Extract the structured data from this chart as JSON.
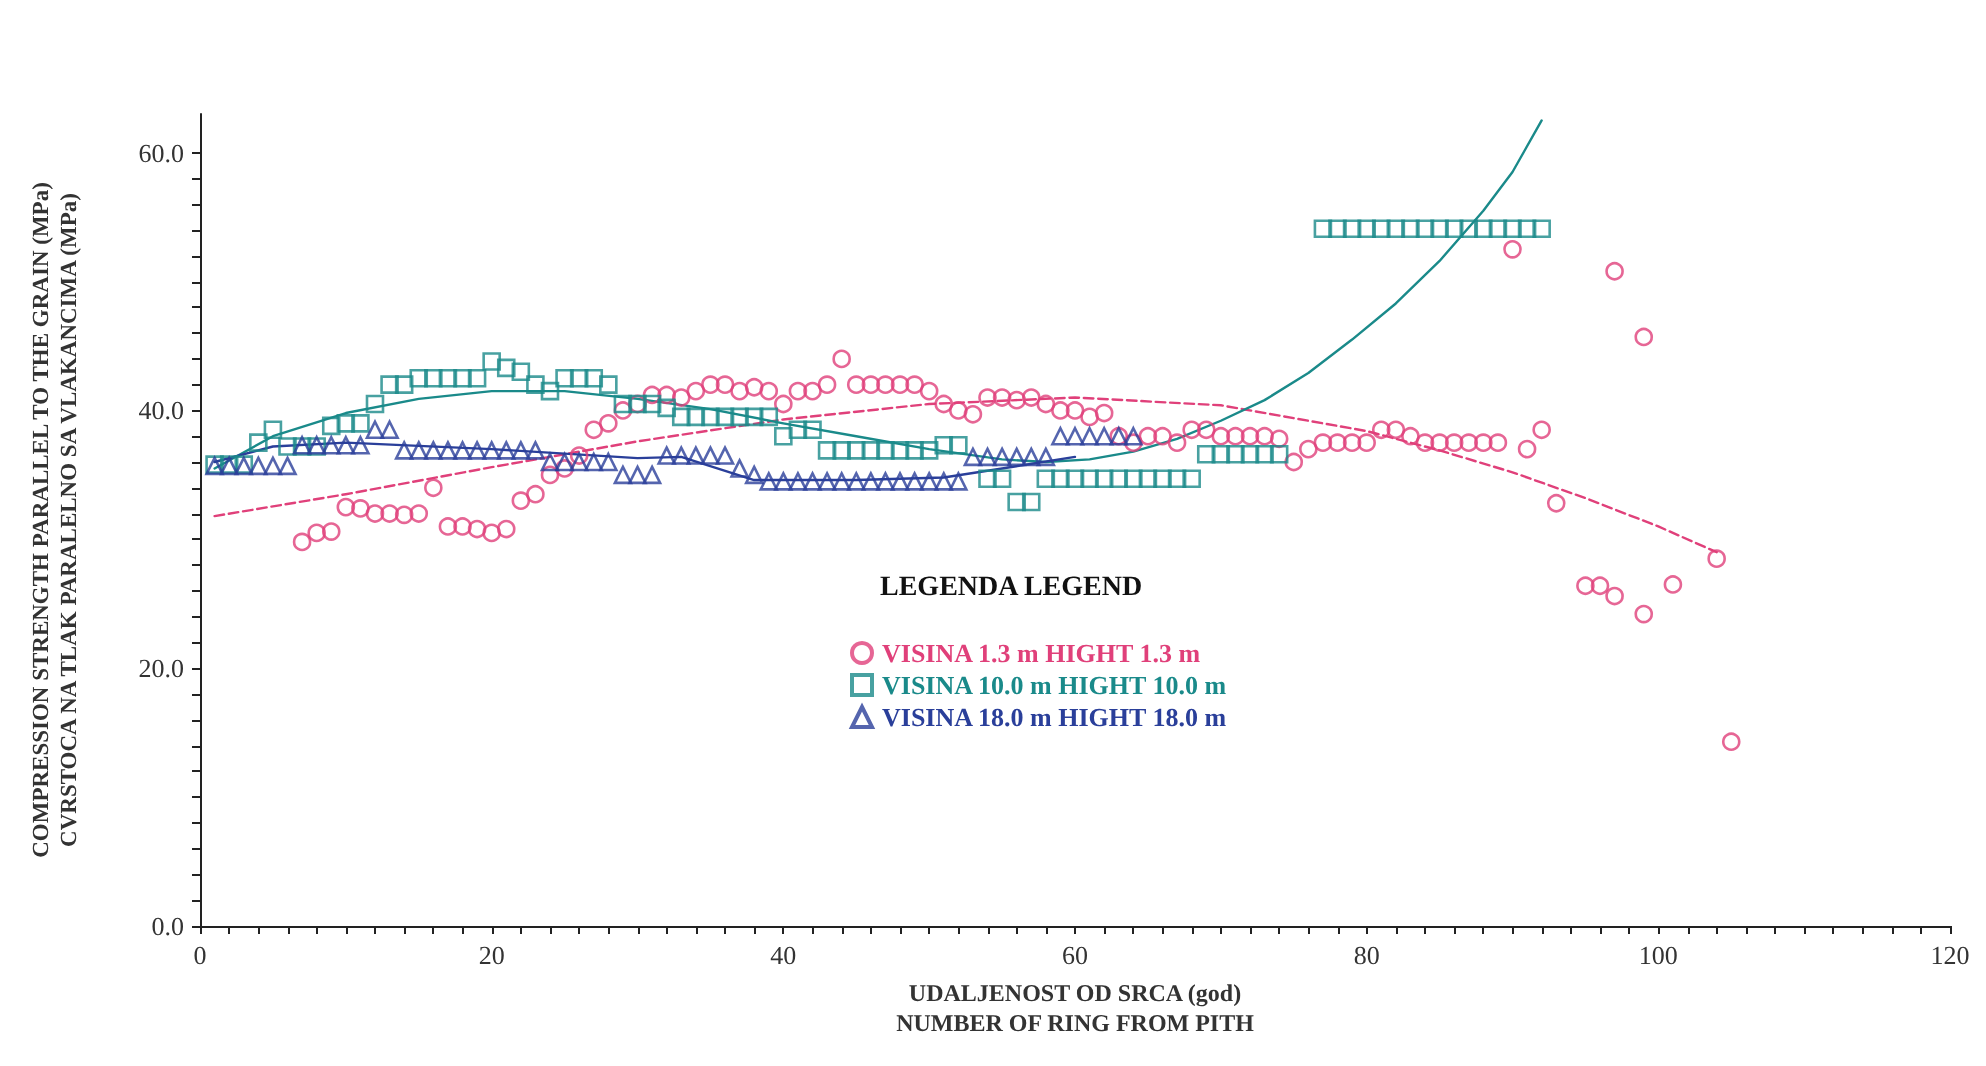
{
  "chart_data": {
    "type": "scatter",
    "xlabel": "UDALJENOST OD SRCA (god)\nNUMBER OF RING FROM PITH",
    "ylabel": "COMPRESSION STRENGTH PARALLEL TO THE GRAIN (MPa)\nCVRSTOCA NA TLAK PARALELNO SA VLAKANCIMA (MPa)",
    "legend_title": "LEGENDA LEGEND",
    "legend": "right",
    "grid": false,
    "xlim": [
      0,
      120
    ],
    "ylim": [
      0,
      63
    ],
    "xticks": [
      0,
      {
        "value": 2,
        "label": null
      },
      {
        "value": 4,
        "label": null
      },
      {
        "value": 6,
        "label": null
      },
      {
        "value": 8,
        "label": null
      },
      {
        "value": 10,
        "label": null
      },
      {
        "value": 12,
        "label": null
      },
      {
        "value": 14,
        "label": null
      },
      {
        "value": 16,
        "label": null
      },
      {
        "value": 18,
        "label": null
      },
      20,
      {
        "value": 22,
        "label": null
      },
      {
        "value": 24,
        "label": null
      },
      {
        "value": 26,
        "label": null
      },
      {
        "value": 28,
        "label": null
      },
      {
        "value": 30,
        "label": null
      },
      {
        "value": 32,
        "label": null
      },
      {
        "value": 34,
        "label": null
      },
      {
        "value": 36,
        "label": null
      },
      {
        "value": 38,
        "label": null
      },
      40,
      {
        "value": 42,
        "label": null
      },
      {
        "value": 44,
        "label": null
      },
      {
        "value": 46,
        "label": null
      },
      {
        "value": 48,
        "label": null
      },
      {
        "value": 50,
        "label": null
      },
      {
        "value": 52,
        "label": null
      },
      {
        "value": 54,
        "label": null
      },
      {
        "value": 56,
        "label": null
      },
      {
        "value": 58,
        "label": null
      },
      60,
      {
        "value": 62,
        "label": null
      },
      {
        "value": 64,
        "label": null
      },
      {
        "value": 66,
        "label": null
      },
      {
        "value": 68,
        "label": null
      },
      {
        "value": 70,
        "label": null
      },
      {
        "value": 72,
        "label": null
      },
      {
        "value": 74,
        "label": null
      },
      {
        "value": 76,
        "label": null
      },
      {
        "value": 78,
        "label": null
      },
      80,
      {
        "value": 82,
        "label": null
      },
      {
        "value": 84,
        "label": null
      },
      {
        "value": 86,
        "label": null
      },
      {
        "value": 88,
        "label": null
      },
      {
        "value": 90,
        "label": null
      },
      {
        "value": 92,
        "label": null
      },
      {
        "value": 94,
        "label": null
      },
      {
        "value": 96,
        "label": null
      },
      {
        "value": 98,
        "label": null
      },
      100,
      {
        "value": 102,
        "label": null
      },
      {
        "value": 104,
        "label": null
      },
      {
        "value": 106,
        "label": null
      },
      {
        "value": 108,
        "label": null
      },
      {
        "value": 110,
        "label": null
      },
      {
        "value": 112,
        "label": null
      },
      {
        "value": 114,
        "label": null
      },
      {
        "value": 116,
        "label": null
      },
      {
        "value": 118,
        "label": null
      },
      120
    ],
    "yticks": [
      {
        "value": 0,
        "label": "0.0"
      },
      {
        "value": 2,
        "label": null
      },
      {
        "value": 4,
        "label": null
      },
      {
        "value": 6,
        "label": null
      },
      {
        "value": 8,
        "label": null
      },
      {
        "value": 10,
        "label": null
      },
      {
        "value": 12,
        "label": null
      },
      {
        "value": 14,
        "label": null
      },
      {
        "value": 16,
        "label": null
      },
      {
        "value": 18,
        "label": null
      },
      {
        "value": 20,
        "label": "20.0"
      },
      {
        "value": 22,
        "label": null
      },
      {
        "value": 24,
        "label": null
      },
      {
        "value": 26,
        "label": null
      },
      {
        "value": 28,
        "label": null
      },
      {
        "value": 30,
        "label": null
      },
      {
        "value": 32,
        "label": null
      },
      {
        "value": 34,
        "label": null
      },
      {
        "value": 36,
        "label": null
      },
      {
        "value": 38,
        "label": null
      },
      {
        "value": 40,
        "label": "40.0"
      },
      {
        "value": 42,
        "label": null
      },
      {
        "value": 44,
        "label": null
      },
      {
        "value": 46,
        "label": null
      },
      {
        "value": 48,
        "label": null
      },
      {
        "value": 50,
        "label": null
      },
      {
        "value": 52,
        "label": null
      },
      {
        "value": 54,
        "label": null
      },
      {
        "value": 56,
        "label": null
      },
      {
        "value": 58,
        "label": null
      },
      {
        "value": 60,
        "label": "60.0"
      }
    ],
    "series": [
      {
        "name": "VISINA 1.3 m HIGHT 1.3 m",
        "color": "#e0407a",
        "marker": "circle",
        "x": [
          7,
          8,
          9,
          10,
          11,
          12,
          13,
          14,
          15,
          16,
          17,
          18,
          19,
          20,
          21,
          22,
          23,
          24,
          25,
          26,
          27,
          28,
          29,
          30,
          31,
          32,
          33,
          34,
          35,
          36,
          37,
          38,
          39,
          40,
          41,
          42,
          43,
          44,
          45,
          46,
          47,
          48,
          49,
          50,
          51,
          52,
          53,
          54,
          55,
          56,
          57,
          58,
          59,
          60,
          61,
          62,
          63,
          64,
          65,
          66,
          67,
          68,
          69,
          70,
          71,
          72,
          73,
          74,
          75,
          76,
          77,
          78,
          79,
          80,
          81,
          82,
          83,
          84,
          85,
          86,
          87,
          88,
          89,
          90,
          91,
          92,
          93,
          95,
          96,
          97,
          97,
          99,
          99,
          101,
          104,
          105
        ],
        "values": [
          29.8,
          30.5,
          30.6,
          32.5,
          32.4,
          32,
          32,
          31.9,
          32,
          34,
          31,
          31,
          30.8,
          30.5,
          30.8,
          33,
          33.5,
          35,
          35.5,
          36.5,
          38.5,
          39,
          40,
          40.5,
          41.2,
          41.2,
          41,
          41.5,
          42,
          42,
          41.5,
          41.8,
          41.5,
          40.5,
          41.5,
          41.5,
          42,
          44,
          42,
          42,
          42,
          42,
          42,
          41.5,
          40.5,
          40,
          39.7,
          41,
          41,
          40.8,
          41,
          40.5,
          40,
          40,
          39.5,
          39.8,
          38,
          37.5,
          38,
          38,
          37.5,
          38.5,
          38.5,
          38,
          38,
          38,
          38,
          37.8,
          36,
          37,
          37.5,
          37.5,
          37.5,
          37.5,
          38.5,
          38.5,
          38,
          37.5,
          37.5,
          37.5,
          37.5,
          37.5,
          37.5,
          52.5,
          37,
          38.5,
          32.8,
          26.4,
          26.4,
          25.6,
          50.8,
          24.2,
          45.7,
          26.5,
          28.5,
          14.3
        ]
      },
      {
        "name": "VISINA 10.0 m HIGHT 10.0 m",
        "color": "#1a8a8a",
        "marker": "square",
        "x": [
          1,
          2,
          3,
          4,
          5,
          6,
          7,
          8,
          9,
          10,
          11,
          12,
          13,
          14,
          15,
          16,
          17,
          18,
          19,
          20,
          21,
          22,
          23,
          24,
          25,
          26,
          27,
          28,
          29,
          30,
          31,
          32,
          33,
          34,
          35,
          36,
          37,
          38,
          39,
          40,
          41,
          42,
          43,
          44,
          45,
          46,
          47,
          48,
          49,
          50,
          51,
          52,
          54,
          55,
          56,
          57,
          58,
          59,
          60,
          61,
          62,
          63,
          64,
          65,
          66,
          67,
          68,
          69,
          70,
          71,
          72,
          73,
          74,
          77,
          78,
          79,
          80,
          81,
          82,
          83,
          84,
          85,
          86,
          87,
          88,
          89,
          90,
          91,
          92
        ],
        "values": [
          35.8,
          35.8,
          35.8,
          37.5,
          38.5,
          37.2,
          37.2,
          37.2,
          38.8,
          39,
          39,
          40.5,
          42,
          42,
          42.5,
          42.5,
          42.5,
          42.5,
          42.5,
          43.8,
          43.3,
          43,
          42,
          41.5,
          42.5,
          42.5,
          42.5,
          42,
          40.5,
          40.5,
          40.5,
          40.2,
          39.5,
          39.5,
          39.5,
          39.5,
          39.5,
          39.5,
          39.5,
          38,
          38.5,
          38.5,
          36.9,
          36.9,
          36.9,
          36.9,
          36.9,
          36.9,
          36.9,
          36.9,
          37.3,
          37.3,
          34.7,
          34.7,
          32.9,
          32.9,
          34.7,
          34.7,
          34.7,
          34.7,
          34.7,
          34.7,
          34.7,
          34.7,
          34.7,
          34.7,
          34.7,
          36.6,
          36.6,
          36.6,
          36.6,
          36.6,
          36.6,
          54.1,
          54.1,
          54.1,
          54.1,
          54.1,
          54.1,
          54.1,
          54.1,
          54.1,
          54.1,
          54.1,
          54.1,
          54.1,
          54.1,
          54.1,
          54.1
        ]
      },
      {
        "name": "VISINA 18.0 m HIGHT 18.0 m",
        "color": "#2a3f9a",
        "marker": "triangle",
        "x": [
          1,
          2,
          3,
          4,
          5,
          6,
          7,
          8,
          9,
          10,
          11,
          12,
          13,
          14,
          15,
          16,
          17,
          18,
          19,
          20,
          21,
          22,
          23,
          24,
          25,
          26,
          27,
          28,
          29,
          30,
          31,
          32,
          33,
          34,
          35,
          36,
          37,
          38,
          39,
          40,
          41,
          42,
          43,
          44,
          45,
          46,
          47,
          48,
          49,
          50,
          51,
          52,
          53,
          54,
          55,
          56,
          57,
          58,
          59,
          60,
          61,
          62,
          63,
          64
        ],
        "values": [
          35.7,
          35.7,
          35.7,
          35.7,
          35.7,
          35.7,
          37.3,
          37.3,
          37.3,
          37.3,
          37.3,
          38.5,
          38.5,
          36.9,
          36.9,
          36.9,
          36.9,
          36.9,
          36.9,
          36.9,
          36.9,
          36.9,
          36.9,
          36,
          36,
          36,
          36,
          36,
          35,
          35,
          35,
          36.5,
          36.5,
          36.5,
          36.5,
          36.5,
          35.5,
          35,
          34.5,
          34.5,
          34.5,
          34.5,
          34.5,
          34.5,
          34.5,
          34.5,
          34.5,
          34.5,
          34.5,
          34.5,
          34.5,
          34.5,
          36.4,
          36.4,
          36.4,
          36.4,
          36.4,
          36.4,
          38,
          38,
          38,
          38,
          38,
          38
        ]
      },
      {
        "type": "line",
        "color": "#e0407a",
        "marker": "none",
        "line_style": "dashed",
        "x": [
          1,
          10,
          20,
          30,
          40,
          50,
          60,
          70,
          80,
          85,
          90,
          95,
          100,
          104
        ],
        "values": [
          31.8,
          33.5,
          35.6,
          37.6,
          39.3,
          40.5,
          41,
          40.4,
          38.4,
          36.9,
          35.2,
          33.2,
          31,
          29
        ]
      },
      {
        "type": "line",
        "color": "#1a8a8a",
        "marker": "none",
        "line_style": "solid",
        "x": [
          1,
          5,
          10,
          15,
          20,
          25,
          30,
          35,
          40,
          45,
          50,
          55,
          58,
          61,
          64,
          67,
          70,
          73,
          76,
          79,
          82,
          85,
          88,
          90,
          92
        ],
        "values": [
          35.5,
          38,
          39.8,
          40.9,
          41.5,
          41.5,
          40.9,
          40.1,
          39,
          38,
          37,
          36.2,
          36,
          36.2,
          36.8,
          37.8,
          39.2,
          40.8,
          42.9,
          45.5,
          48.3,
          51.6,
          55.5,
          58.5,
          62.5
        ]
      },
      {
        "type": "line",
        "color": "#2a3f9a",
        "marker": "none",
        "line_style": "solid",
        "x": [
          1,
          5,
          10,
          20,
          30,
          33,
          38,
          45,
          51,
          55,
          60
        ],
        "values": [
          36,
          37.2,
          37.5,
          37,
          36.3,
          36.4,
          34.6,
          34.6,
          34.8,
          35.5,
          36.4
        ]
      }
    ]
  }
}
